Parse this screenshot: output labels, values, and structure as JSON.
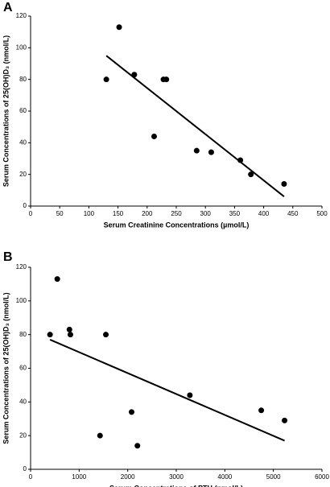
{
  "chart_data": [
    {
      "type": "scatter",
      "panel": "A",
      "x_label": "Serum Creatinine Concentrations (µmol/L)",
      "y_label": "Serum Concentrations of 25(OH)D₃ (nmol/L)",
      "x": [
        130,
        152,
        178,
        228,
        233,
        212,
        285,
        310,
        360,
        378,
        435
      ],
      "values": [
        80,
        113,
        83,
        80,
        80,
        44,
        35,
        34,
        29,
        20,
        14
      ],
      "color": "#000000",
      "trendline": {
        "x": [
          130,
          435
        ],
        "y": [
          95,
          6
        ]
      },
      "xlim": [
        0,
        500
      ],
      "xticks": [
        0,
        50,
        100,
        150,
        200,
        250,
        300,
        350,
        400,
        450,
        500
      ],
      "ylim": [
        0,
        120
      ],
      "yticks": [
        0,
        20,
        40,
        60,
        80,
        100,
        120
      ]
    },
    {
      "type": "scatter",
      "panel": "B",
      "x_label": "Serum Concentrations of PTH (pmol/L)",
      "y_label": "Serum Concentrations of 25(OH)D₃ (nmol/L)",
      "x": [
        400,
        550,
        800,
        820,
        1550,
        1430,
        2080,
        2200,
        3280,
        4750,
        5230
      ],
      "values": [
        80,
        113,
        83,
        80,
        80,
        20,
        34,
        14,
        44,
        35,
        29
      ],
      "color": "#000000",
      "trendline": {
        "x": [
          400,
          5230
        ],
        "y": [
          77,
          17
        ]
      },
      "xlim": [
        0,
        6000
      ],
      "xticks": [
        0,
        1000,
        2000,
        3000,
        4000,
        5000,
        6000
      ],
      "ylim": [
        0,
        120
      ],
      "yticks": [
        0,
        20,
        40,
        60,
        80,
        100,
        120
      ]
    }
  ]
}
